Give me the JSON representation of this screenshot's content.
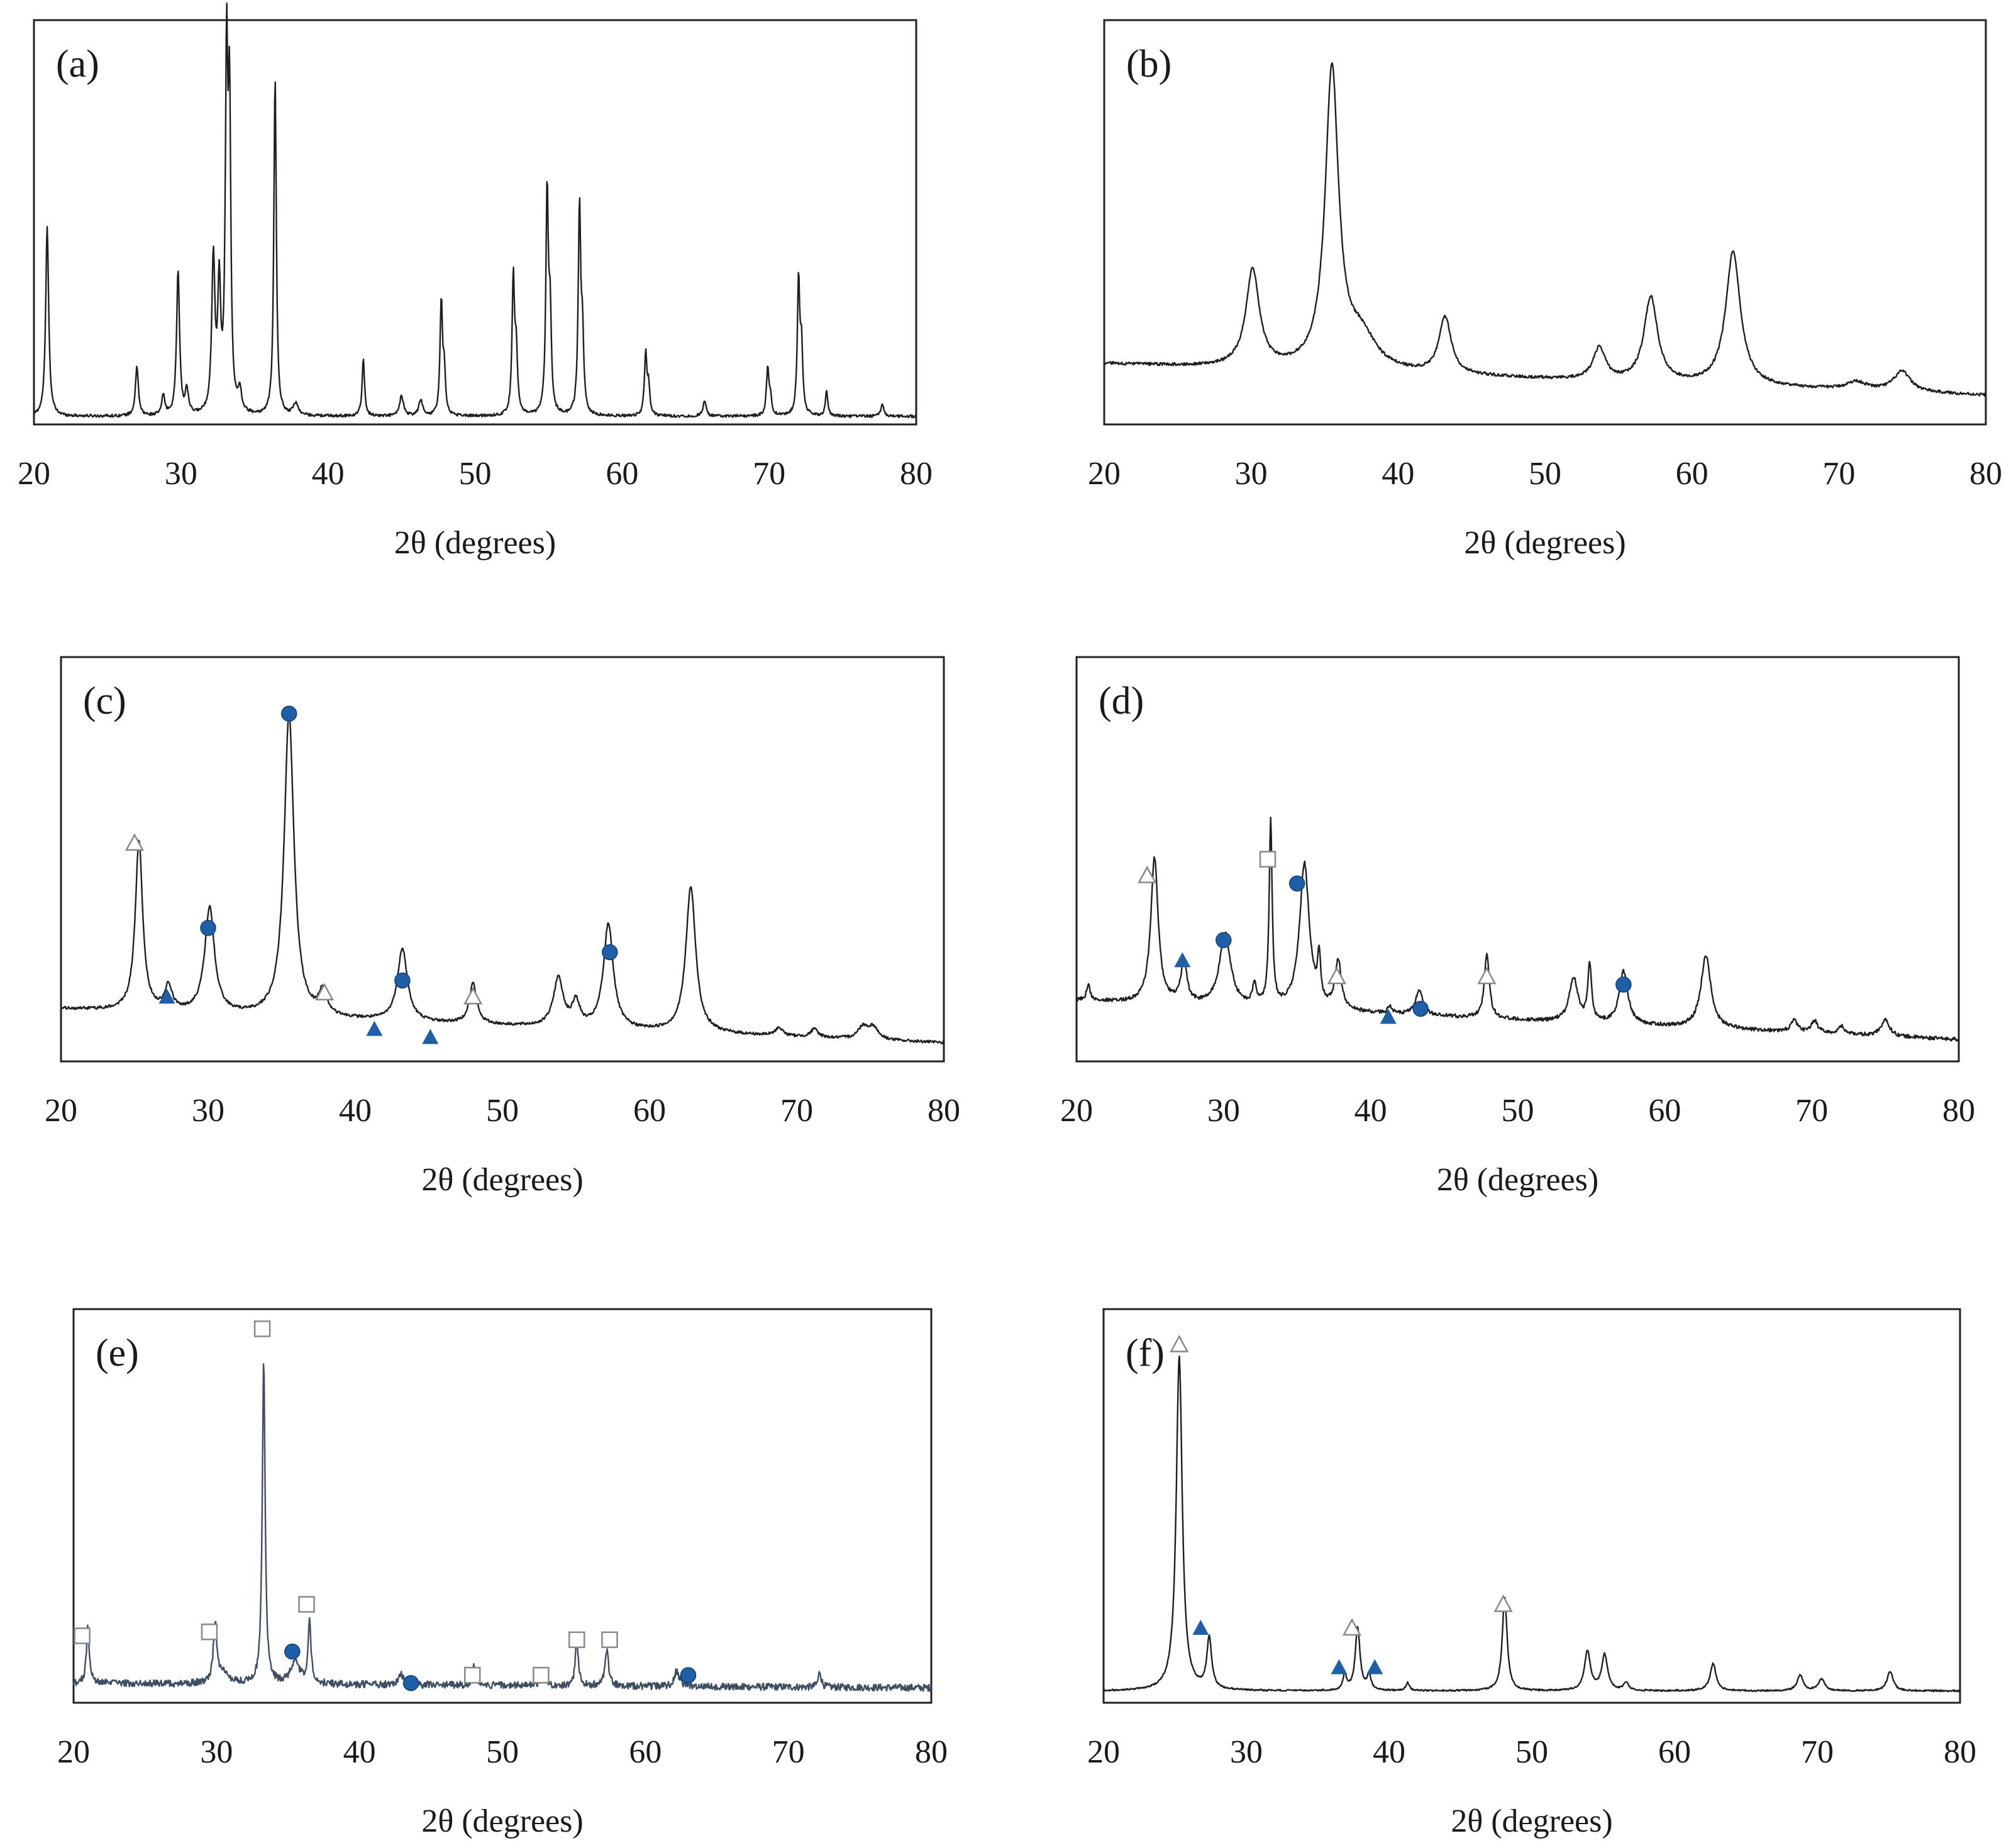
{
  "colors": {
    "trace": "#1f1f1f",
    "trace_e": "#3d4e63",
    "marker_fill": "#1f5fa8",
    "marker_open": "#888888"
  },
  "chart_data": [
    {
      "id": "a",
      "type": "line",
      "label": "(a)",
      "xlabel": "2θ (degrees)",
      "xlim": [
        20,
        80
      ],
      "xticks": [
        "20",
        "30",
        "40",
        "50",
        "60",
        "70",
        "80"
      ],
      "ylim": [
        0,
        100
      ],
      "baseline": 2,
      "slope": 0,
      "noise": 0.35,
      "peaks": [
        [
          20.9,
          47,
          0.12
        ],
        [
          27.0,
          12,
          0.12
        ],
        [
          28.8,
          5,
          0.12
        ],
        [
          29.8,
          36,
          0.12
        ],
        [
          30.4,
          6,
          0.12
        ],
        [
          32.2,
          38,
          0.13
        ],
        [
          32.6,
          30,
          0.12
        ],
        [
          33.1,
          85,
          0.1
        ],
        [
          33.3,
          72,
          0.1
        ],
        [
          34.0,
          5,
          0.15
        ],
        [
          36.4,
          84,
          0.1
        ],
        [
          37.8,
          3,
          0.2
        ],
        [
          42.4,
          14,
          0.1
        ],
        [
          45.0,
          5,
          0.15
        ],
        [
          46.3,
          4,
          0.15
        ],
        [
          47.7,
          28,
          0.1
        ],
        [
          47.9,
          10,
          0.1
        ],
        [
          52.6,
          34,
          0.1
        ],
        [
          52.8,
          15,
          0.1
        ],
        [
          54.9,
          55,
          0.1
        ],
        [
          55.1,
          23,
          0.1
        ],
        [
          57.1,
          51,
          0.1
        ],
        [
          57.3,
          18,
          0.1
        ],
        [
          61.6,
          15,
          0.1
        ],
        [
          61.8,
          7,
          0.1
        ],
        [
          65.6,
          4,
          0.12
        ],
        [
          69.9,
          12,
          0.1
        ],
        [
          70.1,
          4,
          0.1
        ],
        [
          72.0,
          33,
          0.1
        ],
        [
          72.2,
          16,
          0.1
        ],
        [
          73.9,
          6,
          0.1
        ],
        [
          77.7,
          3,
          0.12
        ]
      ],
      "markers": []
    },
    {
      "id": "b",
      "type": "line",
      "label": "(b)",
      "xlabel": "2θ (degrees)",
      "xlim": [
        20,
        80
      ],
      "xticks": [
        "20",
        "30",
        "40",
        "50",
        "60",
        "70",
        "80"
      ],
      "ylim": [
        0,
        100
      ],
      "baseline": 15,
      "slope": -0.13,
      "noise": 0.35,
      "peaks": [
        [
          30.1,
          24,
          0.55
        ],
        [
          35.5,
          74,
          0.55
        ],
        [
          37.5,
          8,
          1.2
        ],
        [
          43.2,
          14,
          0.5
        ],
        [
          53.7,
          8,
          0.5
        ],
        [
          57.2,
          21,
          0.55
        ],
        [
          62.8,
          33,
          0.6
        ],
        [
          71.2,
          2,
          0.8
        ],
        [
          74.3,
          5,
          0.7
        ]
      ],
      "markers": []
    },
    {
      "id": "c",
      "type": "line",
      "label": "(c)",
      "xlabel": "2θ (degrees)",
      "xlim": [
        20,
        80
      ],
      "xticks": [
        "20",
        "30",
        "40",
        "50",
        "60",
        "70",
        "80"
      ],
      "ylim": [
        0,
        100
      ],
      "baseline": 13,
      "slope": -0.14,
      "noise": 0.35,
      "peaks": [
        [
          25.3,
          42,
          0.3
        ],
        [
          27.3,
          6,
          0.3
        ],
        [
          30.1,
          26,
          0.4
        ],
        [
          35.5,
          75,
          0.4
        ],
        [
          37.8,
          6,
          0.3
        ],
        [
          43.2,
          18,
          0.4
        ],
        [
          48.0,
          10,
          0.3
        ],
        [
          53.8,
          12,
          0.4
        ],
        [
          55.0,
          6,
          0.3
        ],
        [
          57.2,
          26,
          0.4
        ],
        [
          62.8,
          36,
          0.4
        ],
        [
          68.8,
          2,
          0.3
        ],
        [
          71.2,
          2,
          0.3
        ],
        [
          74.5,
          3,
          0.4
        ],
        [
          75.2,
          3,
          0.4
        ]
      ],
      "markers": [
        {
          "x": 25.0,
          "shape": "triangle-open",
          "y": 54
        },
        {
          "x": 27.2,
          "shape": "triangle-filled",
          "y": 16
        },
        {
          "x": 30.0,
          "shape": "circle-filled",
          "y": 33
        },
        {
          "x": 35.5,
          "shape": "circle-filled",
          "y": 86
        },
        {
          "x": 37.9,
          "shape": "triangle-open",
          "y": 17
        },
        {
          "x": 41.3,
          "shape": "triangle-filled",
          "y": 8
        },
        {
          "x": 43.2,
          "shape": "circle-filled",
          "y": 20
        },
        {
          "x": 45.1,
          "shape": "triangle-filled",
          "y": 6
        },
        {
          "x": 48.0,
          "shape": "triangle-open",
          "y": 16
        },
        {
          "x": 57.3,
          "shape": "circle-filled",
          "y": 27
        }
      ]
    },
    {
      "id": "d",
      "type": "line",
      "label": "(d)",
      "xlabel": "2θ (degrees)",
      "xlim": [
        20,
        80
      ],
      "xticks": [
        "20",
        "30",
        "40",
        "50",
        "60",
        "70",
        "80"
      ],
      "ylim": [
        0,
        100
      ],
      "baseline": 15,
      "slope": -0.16,
      "noise": 0.45,
      "peaks": [
        [
          20.8,
          4,
          0.15
        ],
        [
          25.3,
          36,
          0.3
        ],
        [
          27.3,
          10,
          0.25
        ],
        [
          30.1,
          18,
          0.45
        ],
        [
          32.1,
          5,
          0.15
        ],
        [
          33.2,
          46,
          0.12
        ],
        [
          35.5,
          36,
          0.4
        ],
        [
          36.5,
          11,
          0.12
        ],
        [
          37.8,
          12,
          0.25
        ],
        [
          41.3,
          2,
          0.15
        ],
        [
          43.3,
          6,
          0.3
        ],
        [
          47.9,
          16,
          0.2
        ],
        [
          53.8,
          11,
          0.35
        ],
        [
          54.9,
          14,
          0.15
        ],
        [
          57.2,
          13,
          0.35
        ],
        [
          62.8,
          18,
          0.4
        ],
        [
          68.8,
          3,
          0.25
        ],
        [
          70.2,
          3,
          0.25
        ],
        [
          72.0,
          2,
          0.25
        ],
        [
          75.0,
          4,
          0.35
        ]
      ],
      "markers": [
        {
          "x": 24.8,
          "shape": "triangle-open",
          "y": 46
        },
        {
          "x": 27.2,
          "shape": "triangle-filled",
          "y": 25
        },
        {
          "x": 30.0,
          "shape": "circle-filled",
          "y": 30
        },
        {
          "x": 33.0,
          "shape": "square-open",
          "y": 50
        },
        {
          "x": 35.0,
          "shape": "circle-filled",
          "y": 44
        },
        {
          "x": 37.7,
          "shape": "triangle-open",
          "y": 21
        },
        {
          "x": 41.2,
          "shape": "triangle-filled",
          "y": 11
        },
        {
          "x": 43.4,
          "shape": "circle-filled",
          "y": 13
        },
        {
          "x": 47.9,
          "shape": "triangle-open",
          "y": 21
        },
        {
          "x": 57.2,
          "shape": "circle-filled",
          "y": 19
        }
      ]
    },
    {
      "id": "e",
      "type": "line",
      "label": "(e)",
      "xlabel": "2θ (degrees)",
      "xlim": [
        20,
        80
      ],
      "xticks": [
        "20",
        "30",
        "40",
        "50",
        "60",
        "70",
        "80"
      ],
      "ylim": [
        0,
        100
      ],
      "baseline": 5,
      "slope": -0.02,
      "noise": 0.9,
      "peaks": [
        [
          21.0,
          14,
          0.12
        ],
        [
          29.9,
          15,
          0.14
        ],
        [
          30.4,
          3,
          0.4
        ],
        [
          33.3,
          82,
          0.12
        ],
        [
          35.5,
          6,
          0.35
        ],
        [
          36.5,
          16,
          0.12
        ],
        [
          42.9,
          3,
          0.2
        ],
        [
          48.0,
          5,
          0.12
        ],
        [
          52.9,
          4,
          0.15
        ],
        [
          55.2,
          12,
          0.12
        ],
        [
          57.3,
          9,
          0.15
        ],
        [
          62.2,
          4,
          0.2
        ],
        [
          72.2,
          4,
          0.12
        ]
      ],
      "markers": [
        {
          "x": 20.6,
          "shape": "square-open",
          "y": 17
        },
        {
          "x": 29.5,
          "shape": "square-open",
          "y": 18
        },
        {
          "x": 33.2,
          "shape": "square-open",
          "y": 95
        },
        {
          "x": 35.3,
          "shape": "circle-filled",
          "y": 13
        },
        {
          "x": 36.3,
          "shape": "square-open",
          "y": 25
        },
        {
          "x": 43.6,
          "shape": "circle-filled",
          "y": 5
        },
        {
          "x": 47.9,
          "shape": "square-open",
          "y": 7
        },
        {
          "x": 52.7,
          "shape": "square-open",
          "y": 7
        },
        {
          "x": 55.2,
          "shape": "square-open",
          "y": 16
        },
        {
          "x": 57.5,
          "shape": "square-open",
          "y": 16
        },
        {
          "x": 63.0,
          "shape": "circle-filled",
          "y": 7
        }
      ]
    },
    {
      "id": "f",
      "type": "line",
      "label": "(f)",
      "xlabel": "2θ (degrees)",
      "xlim": [
        20,
        80
      ],
      "xticks": [
        "20",
        "30",
        "40",
        "50",
        "60",
        "70",
        "80"
      ],
      "ylim": [
        0,
        100
      ],
      "baseline": 3,
      "slope": 0,
      "noise": 0.2,
      "peaks": [
        [
          25.3,
          85,
          0.25
        ],
        [
          27.4,
          13,
          0.2
        ],
        [
          36.9,
          4,
          0.15
        ],
        [
          37.8,
          16,
          0.2
        ],
        [
          38.6,
          4,
          0.15
        ],
        [
          41.3,
          2,
          0.15
        ],
        [
          48.1,
          24,
          0.2
        ],
        [
          53.9,
          10,
          0.25
        ],
        [
          55.1,
          9,
          0.25
        ],
        [
          56.6,
          2,
          0.2
        ],
        [
          62.7,
          7,
          0.25
        ],
        [
          68.8,
          4,
          0.25
        ],
        [
          70.3,
          3,
          0.25
        ],
        [
          75.1,
          5,
          0.25
        ]
      ],
      "markers": [
        {
          "x": 25.3,
          "shape": "triangle-open",
          "y": 91
        },
        {
          "x": 26.8,
          "shape": "triangle-filled",
          "y": 19
        },
        {
          "x": 36.5,
          "shape": "triangle-filled",
          "y": 9
        },
        {
          "x": 37.4,
          "shape": "triangle-open",
          "y": 19
        },
        {
          "x": 39.0,
          "shape": "triangle-filled",
          "y": 9
        },
        {
          "x": 48.0,
          "shape": "triangle-open",
          "y": 25
        }
      ]
    }
  ]
}
